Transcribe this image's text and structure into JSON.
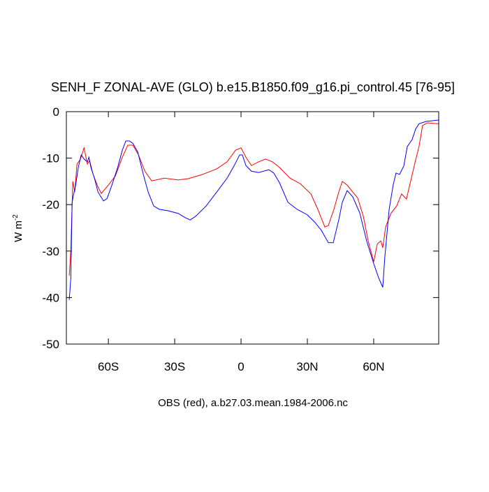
{
  "chart_data": {
    "type": "line",
    "title": "SENH_F ZONAL-AVE (GLO) b.e15.B1850.f09_g16.pi_control.45 [76-95]",
    "xlabel": "OBS (red), a.b27.03.mean.1984-2006.nc",
    "ylabel": {
      "text": "W m",
      "superscript": "-2"
    },
    "xlim": [
      -79,
      89.4
    ],
    "ylim": [
      -50,
      0
    ],
    "xticks": [
      {
        "value": -60,
        "label": "60S"
      },
      {
        "value": -30,
        "label": "30S"
      },
      0,
      {
        "value": 30,
        "label": "30N"
      },
      {
        "value": 60,
        "label": "60N"
      }
    ],
    "yticks": [
      0,
      -10,
      -20,
      -30,
      -40,
      -50
    ],
    "series": [
      {
        "color": "#ff0000",
        "x": [
          -77.7,
          -77,
          -76.1,
          -75.2,
          -74.2,
          -72.6,
          -71,
          -69.5,
          -68.5,
          -66.9,
          -64.7,
          -63.2,
          -60,
          -56.8,
          -53.7,
          -51.2,
          -48.9,
          -46.4,
          -43.5,
          -40.4,
          -34.7,
          -28.4,
          -23.7,
          -17.4,
          -11,
          -6.3,
          -2.5,
          0,
          2.2,
          4.7,
          7.9,
          11.1,
          14.2,
          17.4,
          22.1,
          26.8,
          31.6,
          34.7,
          37.9,
          39.5,
          42,
          44.2,
          45.8,
          48,
          50.5,
          52.7,
          55.3,
          57.5,
          60,
          61.6,
          63.2,
          64.1,
          65.4,
          67.9,
          70.4,
          72.6,
          74.8,
          76.7,
          78.9,
          80.5,
          82.1,
          84.3,
          89.4
        ],
        "values": [
          -35.3,
          -30,
          -15,
          -17.3,
          -11.3,
          -10.2,
          -7.8,
          -11.3,
          -10.5,
          -13.5,
          -16.2,
          -17.6,
          -15.8,
          -13.8,
          -9.8,
          -7.2,
          -7.2,
          -9.3,
          -12.8,
          -14.9,
          -14.3,
          -14.7,
          -14.4,
          -13.5,
          -12.3,
          -10.8,
          -8.3,
          -7.8,
          -9.8,
          -11.6,
          -10.8,
          -10.2,
          -10.8,
          -12,
          -14.3,
          -15.5,
          -17.7,
          -21,
          -24.8,
          -24.5,
          -21,
          -17.3,
          -15,
          -15.8,
          -17.3,
          -18.5,
          -22.5,
          -27.8,
          -32.3,
          -28.5,
          -27.8,
          -29.3,
          -24.8,
          -21.8,
          -20.3,
          -17.7,
          -18.8,
          -15,
          -10.5,
          -7.5,
          -3,
          -2.4,
          -2.6
        ]
      },
      {
        "color": "#0000ff",
        "x": [
          -77.7,
          -77,
          -76.4,
          -75.8,
          -74.8,
          -73.6,
          -72.3,
          -71,
          -69.5,
          -68.8,
          -67.9,
          -66.3,
          -64.7,
          -62.2,
          -60.6,
          -58.4,
          -55.8,
          -53.7,
          -52.1,
          -50.5,
          -48.9,
          -46.7,
          -44.2,
          -42,
          -39.5,
          -37,
          -33.2,
          -28.4,
          -25.3,
          -23,
          -20.5,
          -15.8,
          -11,
          -6.3,
          -3.2,
          -0.6,
          0.6,
          2.2,
          4.7,
          7.9,
          12.6,
          14.8,
          17.4,
          21.2,
          25.3,
          30,
          33.2,
          36.3,
          39.5,
          41.7,
          44.2,
          45.8,
          48,
          50.5,
          53.7,
          56.8,
          60,
          62.2,
          64.1,
          65,
          67,
          68.8,
          70.1,
          71.7,
          73.6,
          75.2,
          77.4,
          78.9,
          80.5,
          83.7,
          89.4
        ],
        "values": [
          -40.5,
          -36,
          -19.5,
          -18,
          -15.8,
          -12,
          -9.3,
          -10.2,
          -10.8,
          -9.8,
          -12,
          -14.3,
          -17.3,
          -19.2,
          -18.7,
          -15.8,
          -12,
          -8.3,
          -6.3,
          -6.3,
          -6.8,
          -8.7,
          -13.5,
          -17.3,
          -20.3,
          -21,
          -21.3,
          -21.9,
          -22.8,
          -23.3,
          -22.5,
          -20.3,
          -17.3,
          -14.3,
          -11.7,
          -9.3,
          -9.3,
          -11.6,
          -12.8,
          -13.1,
          -12.5,
          -13.2,
          -15.3,
          -19.5,
          -21,
          -22.2,
          -23.7,
          -25.5,
          -28.2,
          -28.2,
          -23.3,
          -19.5,
          -17,
          -18.3,
          -21.8,
          -27.8,
          -32.7,
          -35.7,
          -37.8,
          -31.5,
          -21,
          -15.8,
          -13.2,
          -13.5,
          -11.7,
          -7.5,
          -6,
          -3.8,
          -2.6,
          -2.1,
          -1.8
        ]
      }
    ]
  }
}
